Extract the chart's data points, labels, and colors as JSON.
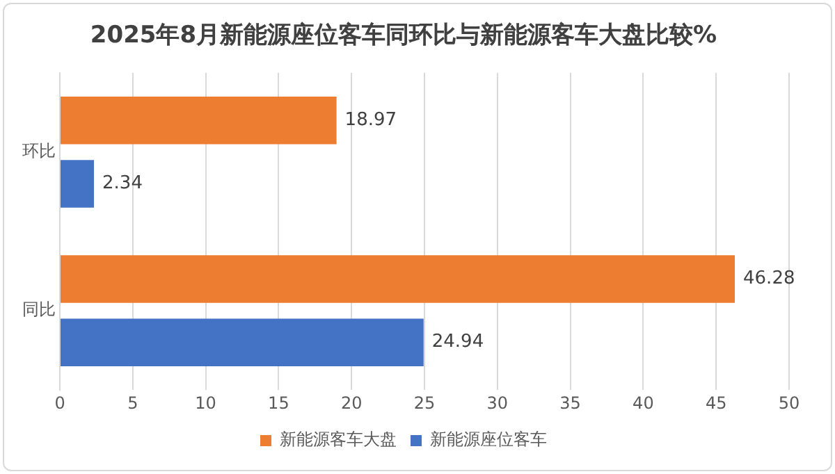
{
  "chart_data": {
    "type": "bar",
    "orientation": "horizontal",
    "title": "2025年8月新能源座位客车同环比与新能源客车大盘比较%",
    "categories": [
      "环比",
      "同比"
    ],
    "series": [
      {
        "name": "新能源客车大盘",
        "color": "#ed7d31",
        "values": [
          18.97,
          46.28
        ]
      },
      {
        "name": "新能源座位客车",
        "color": "#4472c4",
        "values": [
          2.34,
          24.94
        ]
      }
    ],
    "xlim": [
      0,
      50
    ],
    "xticks": [
      0,
      5,
      10,
      15,
      20,
      25,
      30,
      35,
      40,
      45,
      50
    ],
    "grid": "x",
    "legend": "bottom",
    "data_labels": true
  }
}
